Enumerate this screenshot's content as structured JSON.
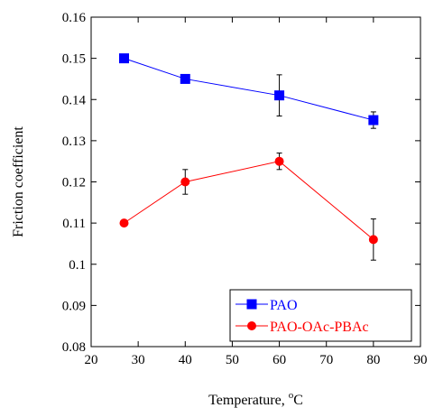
{
  "chart_data": {
    "type": "line",
    "xlabel": "Temperature, ",
    "xlabel_sup": "o",
    "xlabel_suffix": "C",
    "ylabel": "Friction coefficient",
    "xlim": [
      20,
      90
    ],
    "ylim": [
      0.08,
      0.16
    ],
    "x_ticks": [
      20,
      30,
      40,
      50,
      60,
      70,
      80,
      90
    ],
    "y_ticks": [
      0.08,
      0.09,
      0.1,
      0.11,
      0.12,
      0.13,
      0.14,
      0.15,
      0.16
    ],
    "x_tick_labels": [
      "20",
      "30",
      "40",
      "50",
      "60",
      "70",
      "80",
      "90"
    ],
    "y_tick_labels": [
      "0.08",
      "0.09",
      "0.1",
      "0.11",
      "0.12",
      "0.13",
      "0.14",
      "0.15",
      "0.16"
    ],
    "legend_position": "bottom-right",
    "grid": false,
    "series": [
      {
        "name": "PAO",
        "color": "#0000ff",
        "marker": "square",
        "x": [
          27,
          40,
          60,
          80
        ],
        "y": [
          0.15,
          0.145,
          0.141,
          0.135
        ],
        "err": [
          0.0005,
          0.0005,
          0.005,
          0.002
        ]
      },
      {
        "name": "PAO-OAc-PBAc",
        "color": "#ff0000",
        "marker": "circle",
        "x": [
          27,
          40,
          60,
          80
        ],
        "y": [
          0.11,
          0.12,
          0.125,
          0.106
        ],
        "err": [
          0.0005,
          0.003,
          0.002,
          0.005
        ]
      }
    ]
  }
}
